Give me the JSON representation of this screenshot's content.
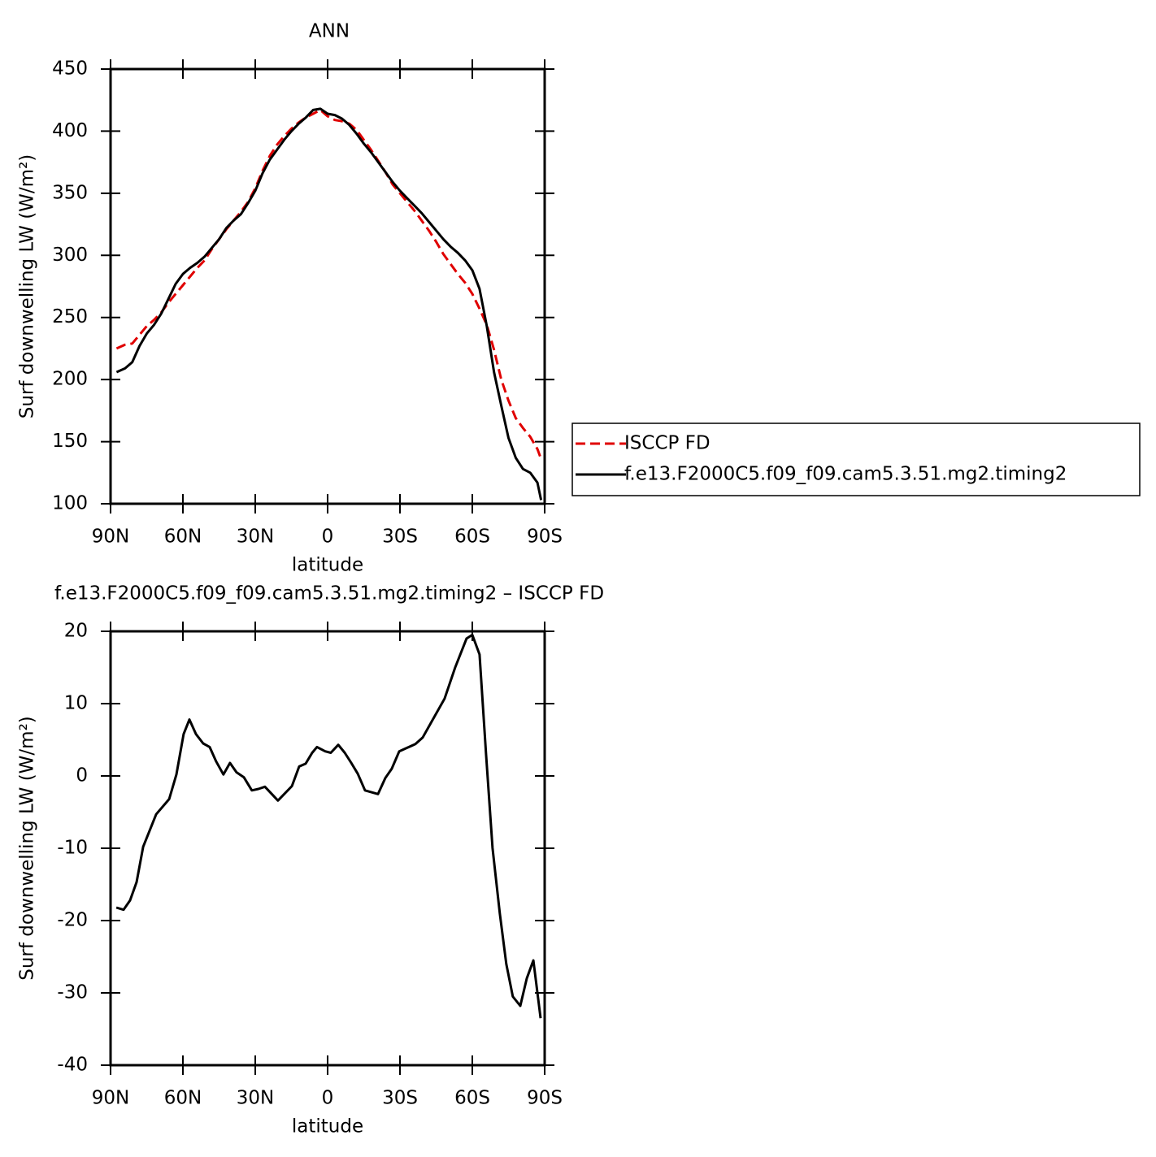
{
  "chart_data": [
    {
      "type": "line",
      "title": "ANN",
      "xlabel": "latitude",
      "ylabel": "Surf downwelling LW (W/m²)",
      "xlim": [
        90,
        -90
      ],
      "xticks": [
        {
          "value": 90,
          "label": "90N"
        },
        {
          "value": 60,
          "label": "60N"
        },
        {
          "value": 30,
          "label": "30N"
        },
        0,
        {
          "value": -30,
          "label": "30S"
        },
        {
          "value": -60,
          "label": "60S"
        },
        {
          "value": -90,
          "label": "90S"
        }
      ],
      "ylim": [
        100,
        450
      ],
      "yticks": [
        100,
        150,
        200,
        250,
        300,
        350,
        400,
        450
      ],
      "legend": "right",
      "x": [
        87.5,
        84,
        81,
        78,
        75,
        72,
        69,
        66,
        63,
        60,
        57,
        54,
        51,
        48,
        45,
        42,
        39,
        36,
        33,
        30,
        27,
        24,
        21,
        18,
        15,
        12,
        9,
        6,
        3,
        0,
        -3,
        -6,
        -9,
        -12,
        -15,
        -18,
        -21,
        -24,
        -27,
        -30,
        -33,
        -36,
        -39,
        -42,
        -45,
        -48,
        -51,
        -54,
        -57,
        -60,
        -63,
        -66,
        -69,
        -72,
        -75,
        -78,
        -81,
        -84,
        -87,
        -88.5
      ],
      "series": [
        {
          "name": "ISCCP FD",
          "color": "#e00000",
          "dashed": true,
          "values": [
            225,
            228,
            229,
            236,
            243,
            248,
            254,
            262,
            269,
            276,
            283,
            290,
            296,
            305,
            313,
            321,
            328,
            335,
            343,
            354,
            368,
            380,
            389,
            396,
            402,
            407,
            411,
            414,
            417,
            412,
            409,
            408,
            406,
            401,
            393,
            385,
            376,
            367,
            357,
            350,
            343,
            336,
            328,
            320,
            311,
            301,
            293,
            285,
            278,
            269,
            257,
            244,
            224,
            200,
            183,
            169,
            161,
            154,
            144,
            136
          ]
        },
        {
          "name": "f.e13.F2000C5.f09_f09.cam5.3.51.mg2.timing2",
          "color": "#000000",
          "dashed": false,
          "values": [
            206,
            209,
            214,
            227,
            237,
            244,
            253,
            265,
            277,
            285,
            290,
            294,
            299,
            306,
            313,
            322,
            328,
            333,
            342,
            352,
            366,
            377,
            385,
            393,
            400,
            406,
            411,
            417,
            418,
            414,
            413,
            410,
            405,
            398,
            390,
            383,
            375,
            367,
            359,
            352,
            346,
            340,
            334,
            327,
            320,
            313,
            307,
            302,
            296,
            288,
            273,
            243,
            206,
            179,
            153,
            137,
            128,
            125,
            117,
            103
          ]
        }
      ]
    },
    {
      "type": "line",
      "title": "f.e13.F2000C5.f09_f09.cam5.3.51.mg2.timing2 – ISCCP FD",
      "xlabel": "latitude",
      "ylabel": "Surf downwelling LW (W/m²)",
      "xlim": [
        90,
        -90
      ],
      "xticks": [
        {
          "value": 90,
          "label": "90N"
        },
        {
          "value": 60,
          "label": "60N"
        },
        {
          "value": 30,
          "label": "30N"
        },
        0,
        {
          "value": -30,
          "label": "30S"
        },
        {
          "value": -60,
          "label": "60S"
        },
        {
          "value": -90,
          "label": "90S"
        }
      ],
      "ylim": [
        -40,
        20
      ],
      "yticks": [
        -40,
        -30,
        -20,
        -10,
        0,
        10,
        20
      ],
      "x": [
        87.6,
        84.6,
        81.9,
        79.2,
        76.5,
        71.1,
        65.7,
        62.7,
        59.7,
        57.3,
        54.6,
        51.6,
        48.9,
        46.2,
        43.2,
        40.5,
        37.8,
        34.7,
        31.4,
        28.7,
        26.0,
        20.6,
        14.8,
        11.8,
        9.1,
        6.4,
        4.4,
        1,
        -1.3,
        -4.4,
        -7.1,
        -9.8,
        -12.5,
        -15.5,
        -20.9,
        -23.9,
        -26.6,
        -29.7,
        -32.3,
        -36.4,
        -39.4,
        -48.5,
        -52.9,
        -57.6,
        -60,
        -63,
        -65.7,
        -68.4,
        -71.4,
        -74.1,
        -76.8,
        -79.9,
        -82.6,
        -85.3,
        -88.3
      ],
      "series": [
        {
          "color": "#000000",
          "dashed": false,
          "values": [
            -18.2,
            -18.5,
            -17.2,
            -14.7,
            -9.8,
            -5.3,
            -3.2,
            0.2,
            5.8,
            7.8,
            5.8,
            4.5,
            4.0,
            2.0,
            0.2,
            1.8,
            0.5,
            -0.2,
            -2,
            -1.8,
            -1.5,
            -3.4,
            -1.4,
            1.3,
            1.7,
            3.2,
            4.0,
            3.4,
            3.2,
            4.3,
            3.2,
            1.8,
            0.3,
            -2,
            -2.5,
            -0.3,
            1.0,
            3.4,
            3.8,
            4.4,
            5.3,
            10.7,
            15,
            19,
            19.5,
            16.8,
            3,
            -10,
            -19,
            -26,
            -30.5,
            -31.8,
            -28,
            -25.5,
            -33.5
          ]
        }
      ]
    }
  ]
}
